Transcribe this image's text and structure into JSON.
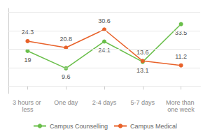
{
  "chart_data": {
    "type": "line",
    "categories": [
      "3 hours or less",
      "One day",
      "2-4 days",
      "5-7 days",
      "More than one week"
    ],
    "series": [
      {
        "name": "Campus Counselling",
        "color": "#6abf4b",
        "values": [
          19,
          9.6,
          24.1,
          13.1,
          33.5
        ]
      },
      {
        "name": "Campus Medical",
        "color": "#e8622a",
        "values": [
          24.3,
          20.8,
          30.6,
          13.6,
          11.2
        ]
      }
    ],
    "ylim": [
      -4,
      42
    ],
    "yticks": [
      0,
      10,
      20,
      30,
      40
    ],
    "grid": true,
    "tick_labels": "x",
    "data_labels": true,
    "legend": "bottom",
    "marker": "circle"
  }
}
